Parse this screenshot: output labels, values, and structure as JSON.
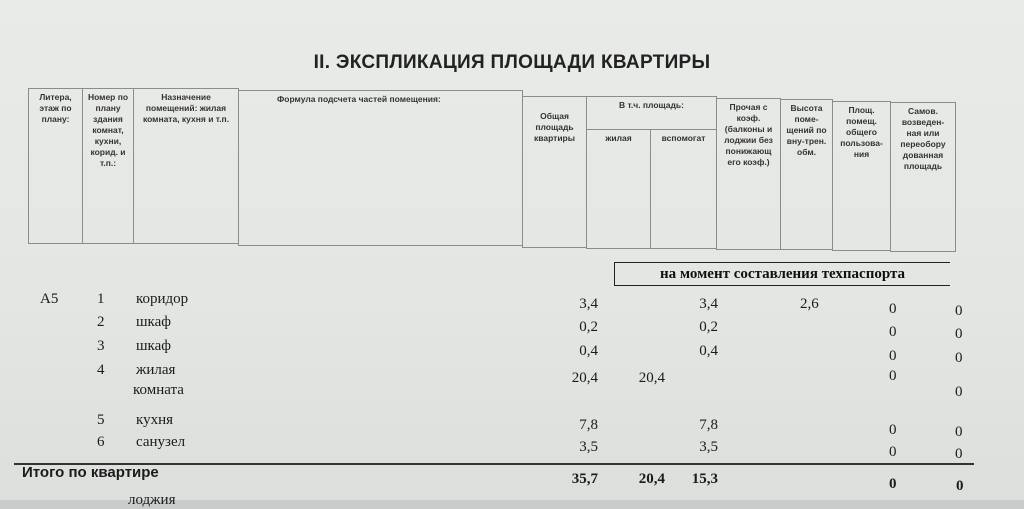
{
  "title": "II. ЭКСПЛИКАЦИЯ ПЛОЩАДИ КВАРТИРЫ",
  "headers": {
    "litera": "Литера, этаж по плану:",
    "nomer": "Номер по плану здания комнат, кухни, корид. и т.п.:",
    "naznachenie": "Назначение помещений: жилая комната, кухня и т.п.",
    "formula": "Формула подсчета частей помещения:",
    "obshaya": "Общая площадь квартиры",
    "v_tch": "В т.ч. площадь:",
    "zhilaya": "жилая",
    "vspomogat": "вспомогат",
    "prochaya": "Прочая с коэф. (балконы и лоджии без понижающ его коэф.)",
    "vysota": "Высота поме-щений по вну-трен. обм.",
    "obsh_polz": "Площ. помещ. общего пользова-ния",
    "samov": "Самов. возведен-ная или переобору дованная площадь"
  },
  "moment": "на момент составления техпаспорта",
  "rows": [
    {
      "litera": "А5",
      "no": "1",
      "name": "коридор",
      "total": "3,4",
      "zhil": "",
      "vsp": "3,4",
      "vys": "2,6",
      "obsh": "0",
      "samov": "0"
    },
    {
      "litera": "",
      "no": "2",
      "name": "шкаф",
      "total": "0,2",
      "zhil": "",
      "vsp": "0,2",
      "vys": "",
      "obsh": "0",
      "samov": "0"
    },
    {
      "litera": "",
      "no": "3",
      "name": "шкаф",
      "total": "0,4",
      "zhil": "",
      "vsp": "0,4",
      "vys": "",
      "obsh": "0",
      "samov": "0"
    },
    {
      "litera": "",
      "no": "4",
      "name": "жилая",
      "name2": "комната",
      "total": "20,4",
      "zhil": "20,4",
      "vsp": "",
      "vys": "",
      "obsh": "0",
      "samov": "0"
    },
    {
      "litera": "",
      "no": "5",
      "name": "кухня",
      "total": "7,8",
      "zhil": "",
      "vsp": "7,8",
      "vys": "",
      "obsh": "0",
      "samov": "0"
    },
    {
      "litera": "",
      "no": "6",
      "name": "санузел",
      "total": "3,5",
      "zhil": "",
      "vsp": "3,5",
      "vys": "",
      "obsh": "0",
      "samov": "0"
    }
  ],
  "total": {
    "label": "Итого по квартире",
    "total": "35,7",
    "zhil": "20,4",
    "vsp": "15,3",
    "obsh": "0",
    "samov": "0"
  },
  "next_row": "лоджия"
}
